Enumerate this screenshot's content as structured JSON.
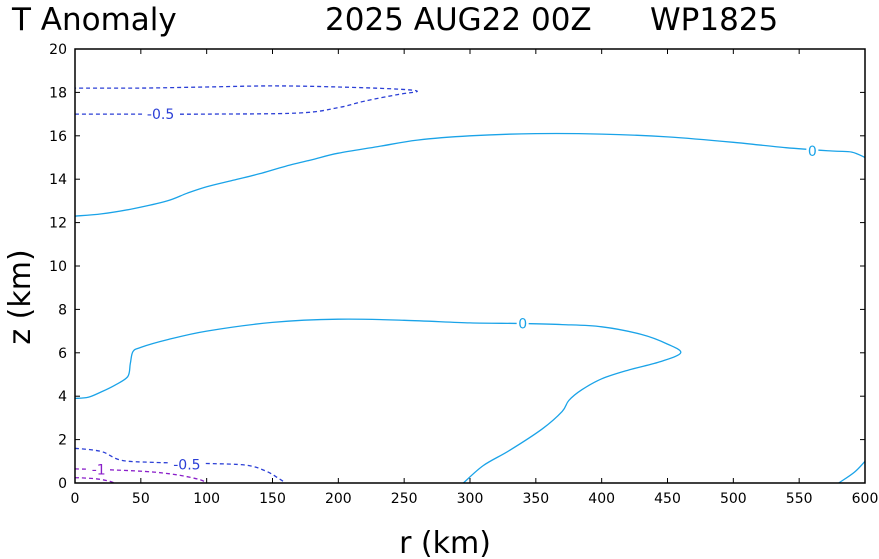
{
  "chart_data": {
    "type": "contour",
    "title": {
      "left": "T Anomaly",
      "center": "2025 AUG22 00Z",
      "right": "WP1825"
    },
    "xlabel": "r (km)",
    "ylabel": "z (km)",
    "xlim": [
      0,
      600
    ],
    "ylim": [
      0,
      20
    ],
    "x_ticks": [
      0,
      50,
      100,
      150,
      200,
      250,
      300,
      350,
      400,
      450,
      500,
      550,
      600
    ],
    "y_ticks": [
      0,
      2,
      4,
      6,
      8,
      10,
      12,
      14,
      16,
      18,
      20
    ],
    "grid": false,
    "colors": {
      "zero": "#1aa3e8",
      "neg_half": "#2b3fd6",
      "neg_one": "#8a1fc9"
    },
    "contours": [
      {
        "level": "0",
        "style": "solid",
        "color_key": "zero",
        "points": [
          [
            0,
            12.3
          ],
          [
            20,
            12.4
          ],
          [
            45,
            12.65
          ],
          [
            70,
            13.0
          ],
          [
            85,
            13.35
          ],
          [
            100,
            13.65
          ],
          [
            120,
            13.95
          ],
          [
            140,
            14.25
          ],
          [
            160,
            14.6
          ],
          [
            180,
            14.9
          ],
          [
            200,
            15.2
          ],
          [
            230,
            15.5
          ],
          [
            260,
            15.8
          ],
          [
            300,
            16.0
          ],
          [
            350,
            16.1
          ],
          [
            400,
            16.08
          ],
          [
            450,
            15.95
          ],
          [
            500,
            15.7
          ],
          [
            540,
            15.45
          ],
          [
            575,
            15.3
          ],
          [
            590,
            15.25
          ],
          [
            600,
            15.0
          ]
        ]
      },
      {
        "level": "0",
        "style": "solid",
        "color_key": "zero",
        "points": [
          [
            0,
            3.9
          ],
          [
            10,
            3.95
          ],
          [
            20,
            4.2
          ],
          [
            30,
            4.5
          ],
          [
            40,
            4.9
          ],
          [
            42,
            5.5
          ],
          [
            44,
            6.05
          ],
          [
            50,
            6.25
          ],
          [
            70,
            6.6
          ],
          [
            100,
            7.0
          ],
          [
            150,
            7.4
          ],
          [
            200,
            7.55
          ],
          [
            250,
            7.5
          ],
          [
            300,
            7.38
          ],
          [
            340,
            7.35
          ],
          [
            370,
            7.3
          ],
          [
            400,
            7.2
          ],
          [
            430,
            6.85
          ],
          [
            450,
            6.4
          ],
          [
            460,
            6.0
          ],
          [
            445,
            5.6
          ],
          [
            420,
            5.2
          ],
          [
            400,
            4.8
          ],
          [
            385,
            4.3
          ],
          [
            375,
            3.8
          ],
          [
            370,
            3.3
          ],
          [
            355,
            2.5
          ],
          [
            330,
            1.5
          ],
          [
            310,
            0.8
          ],
          [
            295,
            0.0
          ]
        ]
      },
      {
        "level": "0",
        "style": "solid",
        "color_key": "zero",
        "points": [
          [
            580,
            0.0
          ],
          [
            592,
            0.5
          ],
          [
            600,
            1.0
          ]
        ]
      },
      {
        "level": "-0.5",
        "style": "dashed",
        "color_key": "neg_half",
        "points": [
          [
            0,
            17.0
          ],
          [
            50,
            17.0
          ],
          [
            100,
            17.0
          ],
          [
            170,
            17.05
          ],
          [
            200,
            17.3
          ],
          [
            220,
            17.6
          ],
          [
            245,
            17.9
          ],
          [
            260,
            18.05
          ],
          [
            245,
            18.15
          ],
          [
            200,
            18.25
          ],
          [
            150,
            18.3
          ],
          [
            100,
            18.25
          ],
          [
            50,
            18.2
          ],
          [
            0,
            18.2
          ]
        ]
      },
      {
        "level": "-0.5",
        "style": "dashed",
        "color_key": "neg_half",
        "points": [
          [
            0,
            1.6
          ],
          [
            20,
            1.45
          ],
          [
            35,
            1.05
          ],
          [
            60,
            0.95
          ],
          [
            100,
            0.9
          ],
          [
            130,
            0.82
          ],
          [
            145,
            0.55
          ],
          [
            155,
            0.2
          ],
          [
            160,
            0.0
          ]
        ]
      },
      {
        "level": "-1",
        "style": "dashed",
        "color_key": "neg_one",
        "points": [
          [
            0,
            0.65
          ],
          [
            30,
            0.6
          ],
          [
            60,
            0.5
          ],
          [
            80,
            0.35
          ],
          [
            95,
            0.15
          ],
          [
            100,
            0.0
          ]
        ]
      },
      {
        "level": "-1.5",
        "style": "dashed",
        "color_key": "neg_one",
        "points": [
          [
            0,
            0.25
          ],
          [
            15,
            0.2
          ],
          [
            25,
            0.1
          ],
          [
            30,
            0.0
          ]
        ]
      }
    ],
    "contour_labels": [
      {
        "text": "-0.5",
        "x": 65,
        "y": 17.0,
        "color_key": "neg_half"
      },
      {
        "text": "0",
        "x": 560,
        "y": 15.3,
        "color_key": "zero"
      },
      {
        "text": "0",
        "x": 340,
        "y": 7.35,
        "color_key": "zero"
      },
      {
        "text": "-0.5",
        "x": 85,
        "y": 0.85,
        "color_key": "neg_half"
      },
      {
        "text": "-1",
        "x": 18,
        "y": 0.62,
        "color_key": "neg_one"
      }
    ]
  }
}
